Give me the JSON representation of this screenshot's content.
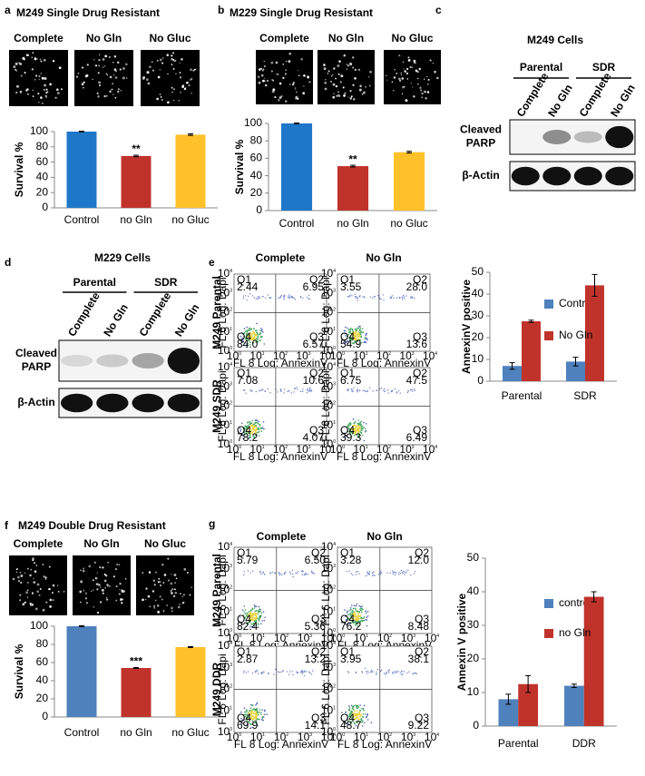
{
  "panel_letters": [
    "a",
    "b",
    "c",
    "d",
    "e",
    "f",
    "g"
  ],
  "chart_data": [
    {
      "type": "bar",
      "title": "M249 Single Drug Resistant",
      "image_labels": [
        "Complete",
        "No Gln",
        "No Gluc"
      ],
      "ylabel": "Survival %",
      "categories": [
        "Control",
        "no Gln",
        "no Gluc"
      ],
      "values": [
        100,
        68,
        96
      ],
      "errors": [
        0.5,
        1,
        1
      ],
      "significance": [
        null,
        "**",
        null
      ],
      "colors": [
        "#1f77c9",
        "#c0332b",
        "#ffc12a"
      ],
      "ylim": [
        0,
        100
      ],
      "yticks": [
        0,
        20,
        40,
        60,
        80,
        100
      ]
    },
    {
      "type": "bar",
      "title": "M229 Single Drug Resistant",
      "image_labels": [
        "Complete",
        "No Gln",
        "No Gluc"
      ],
      "ylabel": "Survival %",
      "categories": [
        "Control",
        "no Gln",
        "no Gluc"
      ],
      "values": [
        100,
        51,
        67
      ],
      "errors": [
        0.5,
        1,
        1
      ],
      "significance": [
        null,
        "**",
        null
      ],
      "colors": [
        "#1f77c9",
        "#c0332b",
        "#ffc12a"
      ],
      "ylim": [
        0,
        100
      ],
      "yticks": [
        0,
        20,
        40,
        60,
        80,
        100
      ]
    },
    {
      "type": "bar",
      "ylabel": "AnnexinV positive",
      "categories": [
        "Parental",
        "SDR"
      ],
      "series": [
        {
          "name": "Control",
          "color": "#4f81bd",
          "values": [
            7,
            9
          ],
          "errors": [
            1.5,
            2
          ]
        },
        {
          "name": "No Gln",
          "color": "#c0332b",
          "values": [
            27.5,
            44
          ],
          "errors": [
            0.5,
            5
          ]
        }
      ],
      "legend": "right",
      "ylim": [
        0,
        50
      ],
      "yticks": [
        0,
        10,
        20,
        30,
        40,
        50
      ]
    },
    {
      "type": "bar",
      "title": "M249 Double Drug Resistant",
      "image_labels": [
        "Complete",
        "No Gln",
        "No Gluc"
      ],
      "ylabel": "Survival %",
      "categories": [
        "Control",
        "no Gln",
        "no Gluc"
      ],
      "values": [
        100,
        54,
        77
      ],
      "errors": [
        0.5,
        0.5,
        0.5
      ],
      "significance": [
        null,
        "***",
        null
      ],
      "colors": [
        "#4f81bd",
        "#c0332b",
        "#ffc12a"
      ],
      "ylim": [
        0,
        100
      ],
      "yticks": [
        0,
        20,
        40,
        60,
        80,
        100
      ]
    },
    {
      "type": "bar",
      "ylabel": "Annexin V positive",
      "categories": [
        "Parental",
        "DDR"
      ],
      "series": [
        {
          "name": "control",
          "color": "#4f81bd",
          "values": [
            8,
            12
          ],
          "errors": [
            1.5,
            0.5
          ]
        },
        {
          "name": "no Gln",
          "color": "#c0332b",
          "values": [
            12.5,
            38.5
          ],
          "errors": [
            2.5,
            1.5
          ]
        }
      ],
      "legend": "right",
      "ylim": [
        0,
        50
      ],
      "yticks": [
        0,
        10,
        20,
        30,
        40,
        50
      ]
    }
  ],
  "blots": [
    {
      "title": "M249 Cells",
      "groups": [
        "Parental",
        "SDR"
      ],
      "lanes": [
        "Complete",
        "No Gln",
        "Complete",
        "No Gln"
      ],
      "row_labels": [
        [
          "Cleaved",
          "PARP"
        ],
        [
          "β-Actin"
        ]
      ]
    },
    {
      "title": "M229 Cells",
      "groups": [
        "Parental",
        "SDR"
      ],
      "lanes": [
        "Complete",
        "No Gln",
        "Complete",
        "No Gln"
      ],
      "row_labels": [
        [
          "Cleaved",
          "PARP"
        ],
        [
          "β-Actin"
        ]
      ]
    }
  ],
  "flow": [
    {
      "columns": [
        "Complete",
        "No Gln"
      ],
      "rows": [
        "M249 Parental",
        "M249 SDR"
      ],
      "x_label": "FL 8 Log: AnnexinV",
      "y_label": "FL 6 Log: Dapi",
      "tick_base": "10",
      "tick_exponents": [
        "0",
        "1",
        "2",
        "3",
        "4"
      ],
      "quadrant_names": [
        "Q1",
        "Q2",
        "Q3",
        "Q4"
      ],
      "plots": [
        [
          [
            "2.44",
            "6.95",
            "6.57",
            "84.0"
          ],
          [
            "3.55",
            "28.0",
            "13.6",
            "54.9"
          ]
        ],
        [
          [
            "7.08",
            "10.6",
            "4.07",
            "78.2"
          ],
          [
            "6.75",
            "47.5",
            "6.49",
            "39.3"
          ]
        ]
      ]
    },
    {
      "columns": [
        "Complete",
        "No Gln"
      ],
      "rows": [
        "M249 Parental",
        "M249 DDR"
      ],
      "x_label": "FL 8 Log: AnnexinV",
      "y_label": "FL 6 Log: Dapi",
      "tick_base": "10",
      "tick_exponents": [
        "0",
        "1",
        "2",
        "3",
        "4"
      ],
      "quadrant_names": [
        "Q1",
        "Q2",
        "Q3",
        "Q4"
      ],
      "plots": [
        [
          [
            "5.79",
            "6.50",
            "5.36",
            "82.4"
          ],
          [
            "3.28",
            "12.0",
            "8.48",
            "76.2"
          ]
        ],
        [
          [
            "2.87",
            "13.2",
            "14.1",
            "69.9"
          ],
          [
            "3.95",
            "38.1",
            "9.22",
            "48.7"
          ]
        ]
      ]
    }
  ]
}
